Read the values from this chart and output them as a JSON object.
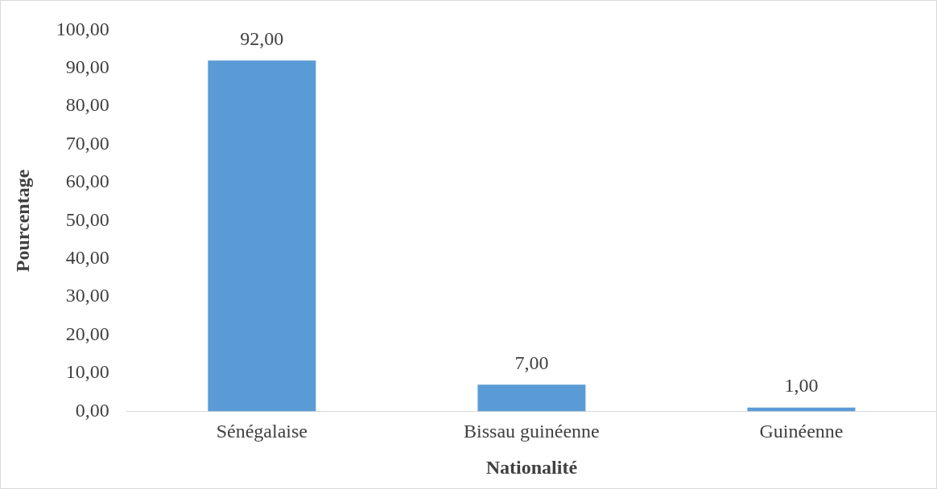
{
  "chart_data": {
    "type": "bar",
    "xlabel": "Nationalité",
    "ylabel": "Pourcentage",
    "categories": [
      "Sénégalaise",
      "Bissau guinéenne",
      "Guinéenne"
    ],
    "values": [
      92,
      7,
      1
    ],
    "color": "#5b9bd5",
    "value_labels": [
      "92,00",
      "7,00",
      "1,00"
    ],
    "ylim": [
      0,
      100
    ],
    "yticks": [
      {
        "value": 0,
        "label": "0,00"
      },
      {
        "value": 10,
        "label": "10,00"
      },
      {
        "value": 20,
        "label": "20,00"
      },
      {
        "value": 30,
        "label": "30,00"
      },
      {
        "value": 40,
        "label": "40,00"
      },
      {
        "value": 50,
        "label": "50,00"
      },
      {
        "value": 60,
        "label": "60,00"
      },
      {
        "value": 70,
        "label": "70,00"
      },
      {
        "value": 80,
        "label": "80,00"
      },
      {
        "value": 90,
        "label": "90,00"
      },
      {
        "value": 100,
        "label": "100,00"
      }
    ],
    "grid": false,
    "legend": false
  }
}
